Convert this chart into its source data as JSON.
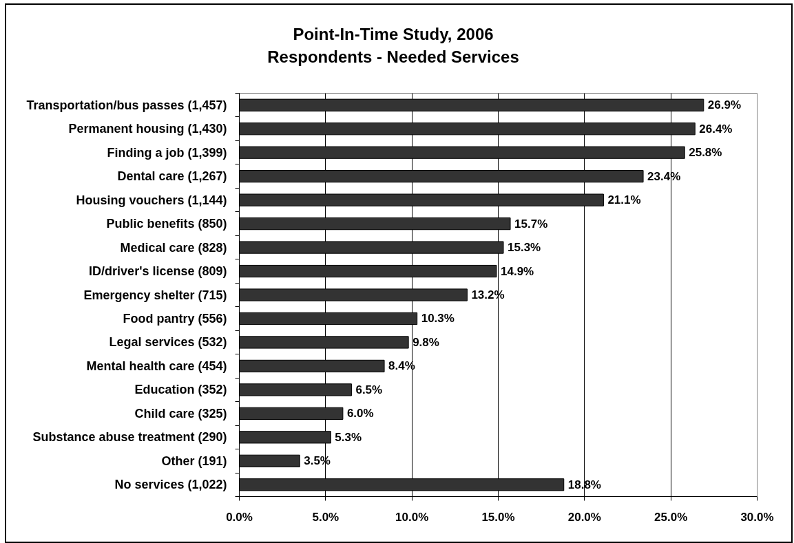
{
  "chart_data": {
    "type": "bar",
    "orientation": "horizontal",
    "title": "Point-In-Time Study, 2006",
    "subtitle": "Respondents - Needed Services",
    "categories": [
      "Transportation/bus passes (1,457)",
      "Permanent housing (1,430)",
      "Finding a job (1,399)",
      "Dental care (1,267)",
      "Housing vouchers (1,144)",
      "Public benefits (850)",
      "Medical care (828)",
      "ID/driver's license (809)",
      "Emergency shelter (715)",
      "Food pantry (556)",
      "Legal services (532)",
      "Mental health care (454)",
      "Education (352)",
      "Child care (325)",
      "Substance abuse treatment (290)",
      "Other (191)",
      "No services (1,022)"
    ],
    "values": [
      26.9,
      26.4,
      25.8,
      23.4,
      21.1,
      15.7,
      15.3,
      14.9,
      13.2,
      10.3,
      9.8,
      8.4,
      6.5,
      6.0,
      5.3,
      3.5,
      18.8
    ],
    "value_labels": [
      "26.9%",
      "26.4%",
      "25.8%",
      "23.4%",
      "21.1%",
      "15.7%",
      "15.3%",
      "14.9%",
      "13.2%",
      "10.3%",
      "9.8%",
      "8.4%",
      "6.5%",
      "6.0%",
      "5.3%",
      "3.5%",
      "18.8%"
    ],
    "color": "#333333",
    "xlim": [
      0,
      30
    ],
    "xticks": [
      {
        "value": 0,
        "label": "0.0%"
      },
      {
        "value": 5,
        "label": "5.0%"
      },
      {
        "value": 10,
        "label": "10.0%"
      },
      {
        "value": 15,
        "label": "15.0%"
      },
      {
        "value": 20,
        "label": "20.0%"
      },
      {
        "value": 25,
        "label": "25.0%"
      },
      {
        "value": 30,
        "label": "30.0%"
      }
    ],
    "grid": "x"
  }
}
